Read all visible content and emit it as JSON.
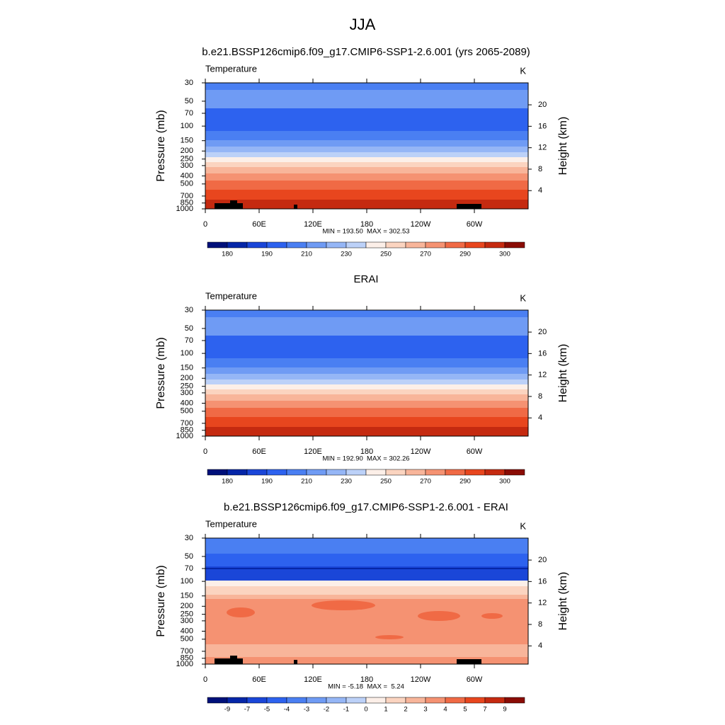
{
  "title": "JJA",
  "chart_data": [
    {
      "type": "contour",
      "title": "b.e21.BSSP126cmip6.f09_g17.CMIP6-SSP1-2.6.001 (yrs 2065-2089)",
      "left_label": "Temperature",
      "units": "K",
      "ylabel": "Pressure (mb)",
      "y2label": "Height (km)",
      "stats": "MIN = 193.50  MAX = 302.53",
      "xlim": [
        0,
        360
      ],
      "xticks": [
        0,
        {
          "value": 60,
          "label": "60E"
        },
        {
          "value": 120,
          "label": "120E"
        },
        180,
        {
          "value": 240,
          "label": "120W"
        },
        {
          "value": 300,
          "label": "60W"
        }
      ],
      "ylim": [
        1000,
        30
      ],
      "yscale": "log",
      "yticks": [
        30,
        50,
        70,
        100,
        150,
        200,
        250,
        300,
        400,
        500,
        700,
        850,
        1000
      ],
      "y2lim": [
        0.6,
        24.1
      ],
      "y2ticks": [
        4,
        8,
        12,
        16,
        20
      ],
      "colorbar": {
        "colors": [
          "#00107a",
          "#0526a8",
          "#1a46d8",
          "#2d62ef",
          "#4a7ff2",
          "#6f9bf4",
          "#95b6f6",
          "#bcd1f8",
          "#fcefe8",
          "#fbd4c0",
          "#f8b59a",
          "#f59272",
          "#f06a45",
          "#e8461e",
          "#c52a10",
          "#8a0c05"
        ],
        "labels": [
          180,
          190,
          210,
          230,
          250,
          270,
          290,
          300
        ]
      }
    },
    {
      "type": "contour",
      "title": "ERAI",
      "left_label": "Temperature",
      "units": "K",
      "ylabel": "Pressure (mb)",
      "y2label": "Height (km)",
      "stats": "MIN = 192.90  MAX = 302.26",
      "xlim": [
        0,
        360
      ],
      "xticks": [
        0,
        {
          "value": 60,
          "label": "60E"
        },
        {
          "value": 120,
          "label": "120E"
        },
        180,
        {
          "value": 240,
          "label": "120W"
        },
        {
          "value": 300,
          "label": "60W"
        }
      ],
      "ylim": [
        1000,
        30
      ],
      "yscale": "log",
      "yticks": [
        30,
        50,
        70,
        100,
        150,
        200,
        250,
        300,
        400,
        500,
        700,
        850,
        1000
      ],
      "y2lim": [
        0.6,
        24.1
      ],
      "y2ticks": [
        4,
        8,
        12,
        16,
        20
      ],
      "colorbar": {
        "colors": [
          "#00107a",
          "#0526a8",
          "#1a46d8",
          "#2d62ef",
          "#4a7ff2",
          "#6f9bf4",
          "#95b6f6",
          "#bcd1f8",
          "#fcefe8",
          "#fbd4c0",
          "#f8b59a",
          "#f59272",
          "#f06a45",
          "#e8461e",
          "#c52a10",
          "#8a0c05"
        ],
        "labels": [
          180,
          190,
          210,
          230,
          250,
          270,
          290,
          300
        ]
      }
    },
    {
      "type": "contour",
      "title": "b.e21.BSSP126cmip6.f09_g17.CMIP6-SSP1-2.6.001 - ERAI",
      "left_label": "Temperature",
      "units": "K",
      "ylabel": "Pressure (mb)",
      "y2label": "Height (km)",
      "stats": "MIN = -5.18  MAX =  5.24",
      "xlim": [
        0,
        360
      ],
      "xticks": [
        0,
        {
          "value": 60,
          "label": "60E"
        },
        {
          "value": 120,
          "label": "120E"
        },
        180,
        {
          "value": 240,
          "label": "120W"
        },
        {
          "value": 300,
          "label": "60W"
        }
      ],
      "ylim": [
        1000,
        30
      ],
      "yscale": "log",
      "yticks": [
        30,
        50,
        70,
        100,
        150,
        200,
        250,
        300,
        400,
        500,
        700,
        850,
        1000
      ],
      "y2lim": [
        0.6,
        24.1
      ],
      "y2ticks": [
        4,
        8,
        12,
        16,
        20
      ],
      "colorbar": {
        "colors": [
          "#00107a",
          "#0526a8",
          "#1a46d8",
          "#2d62ef",
          "#4a7ff2",
          "#6f9bf4",
          "#95b6f6",
          "#bcd1f8",
          "#fcefe8",
          "#fbd4c0",
          "#f8b59a",
          "#f59272",
          "#f06a45",
          "#e8461e",
          "#c52a10",
          "#8a0c05"
        ],
        "labels": [
          -9,
          -7,
          -5,
          -4,
          -3,
          -2,
          -1,
          0,
          1,
          2,
          3,
          4,
          5,
          7,
          9
        ]
      }
    }
  ]
}
